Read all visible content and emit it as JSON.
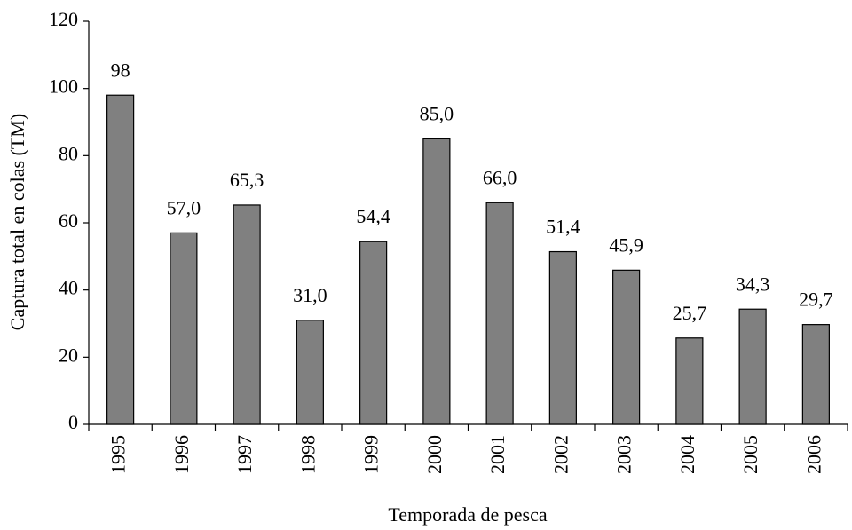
{
  "chart_data": {
    "type": "bar",
    "x_label": "Temporada de pesca",
    "y_label": "Captura total en colas (TM)",
    "categories": [
      "1995",
      "1996",
      "1997",
      "1998",
      "1999",
      "2000",
      "2001",
      "2002",
      "2003",
      "2004",
      "2005",
      "2006"
    ],
    "values": [
      98,
      57.0,
      65.3,
      31.0,
      54.4,
      85.0,
      66.0,
      51.4,
      45.9,
      25.7,
      34.3,
      29.7
    ],
    "value_labels": [
      "98",
      "57,0",
      "65,3",
      "31,0",
      "54,4",
      "85,0",
      "66,0",
      "51,4",
      "45,9",
      "25,7",
      "34,3",
      "29,7"
    ],
    "color": "#808080",
    "ylim": [
      0,
      120
    ],
    "yticks": [
      0,
      20,
      40,
      60,
      80,
      100,
      120
    ],
    "grid": false
  }
}
